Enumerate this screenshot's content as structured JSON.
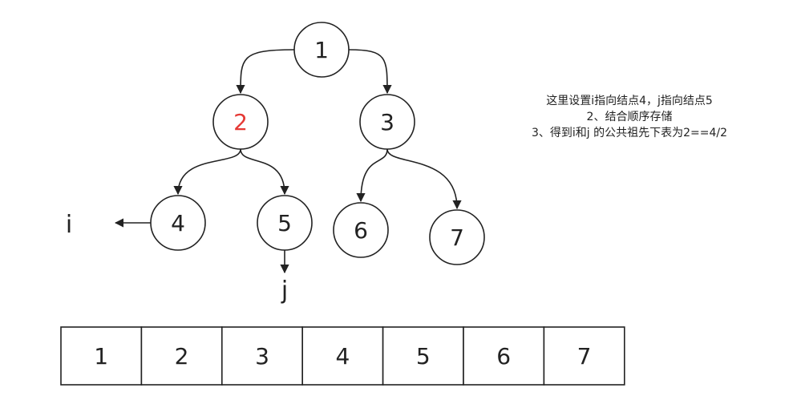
{
  "colors": {
    "stroke": "#222222",
    "highlight": "#e53935",
    "text": "#222222"
  },
  "tree": {
    "nodes": [
      {
        "id": "n1",
        "label": "1",
        "highlight": false
      },
      {
        "id": "n2",
        "label": "2",
        "highlight": true
      },
      {
        "id": "n3",
        "label": "3",
        "highlight": false
      },
      {
        "id": "n4",
        "label": "4",
        "highlight": false
      },
      {
        "id": "n5",
        "label": "5",
        "highlight": false
      },
      {
        "id": "n6",
        "label": "6",
        "highlight": false
      },
      {
        "id": "n7",
        "label": "7",
        "highlight": false
      }
    ],
    "edges": [
      [
        "n1",
        "n2"
      ],
      [
        "n1",
        "n3"
      ],
      [
        "n2",
        "n4"
      ],
      [
        "n2",
        "n5"
      ],
      [
        "n3",
        "n6"
      ],
      [
        "n3",
        "n7"
      ]
    ]
  },
  "pointers": {
    "i": {
      "label": "i",
      "target": "n4"
    },
    "j": {
      "label": "j",
      "target": "n5"
    }
  },
  "note": {
    "lines": [
      "这里设置i指向结点4，j指向结点5",
      "2、结合顺序存储",
      "3、得到i和j 的公共祖先下表为2==4/2"
    ]
  },
  "array": {
    "cells": [
      "1",
      "2",
      "3",
      "4",
      "5",
      "6",
      "7"
    ]
  }
}
